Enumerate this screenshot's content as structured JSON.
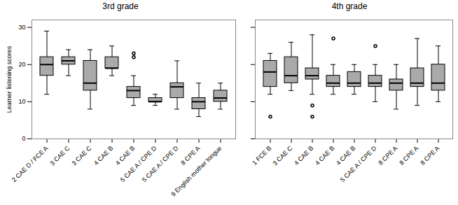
{
  "chart_data": [
    {
      "type": "box",
      "title": "3rd grade",
      "ylabel": "Learner listening scores",
      "categories": [
        "2 CAE D / FCE A",
        "3 CAE C",
        "3 CAE C",
        "4 CAE B",
        "4 CAE B",
        "5 CAE A / CPE D",
        "5 CAE A / CPE D",
        "8 CPE A",
        "9 English mother tongue"
      ],
      "boxes": [
        {
          "whisker_low": 12,
          "q1": 17,
          "median": 20,
          "q3": 22,
          "whisker_high": 29,
          "outliers": []
        },
        {
          "whisker_low": 17,
          "q1": 20,
          "median": 21,
          "q3": 22,
          "whisker_high": 24,
          "outliers": []
        },
        {
          "whisker_low": 8,
          "q1": 13,
          "median": 15,
          "q3": 21,
          "whisker_high": 24,
          "outliers": []
        },
        {
          "whisker_low": 17,
          "q1": 19,
          "median": 19,
          "q3": 22,
          "whisker_high": 25,
          "outliers": []
        },
        {
          "whisker_low": 9,
          "q1": 11,
          "median": 13,
          "q3": 14,
          "whisker_high": 17,
          "outliers": [
            23,
            22
          ]
        },
        {
          "whisker_low": 9,
          "q1": 10,
          "median": 10,
          "q3": 11,
          "whisker_high": 12,
          "outliers": []
        },
        {
          "whisker_low": 8,
          "q1": 11,
          "median": 14,
          "q3": 15,
          "whisker_high": 21,
          "outliers": []
        },
        {
          "whisker_low": 6,
          "q1": 8,
          "median": 10,
          "q3": 11,
          "whisker_high": 15,
          "outliers": []
        },
        {
          "whisker_low": 8,
          "q1": 10,
          "median": 11,
          "q3": 13,
          "whisker_high": 15,
          "outliers": []
        }
      ],
      "color": "#aaaaaa",
      "ylim": [
        0,
        32
      ],
      "yticks": [
        0,
        10,
        20,
        30
      ],
      "grid": false
    },
    {
      "type": "box",
      "title": "4th grade",
      "categories": [
        "1 FCE B",
        "3 CAE C",
        "4 CAE B",
        "4 CAE B",
        "4 CAE B",
        "5 CAE A / CPE D",
        "8 CPE A",
        "8 CPE A",
        "8 CPE A"
      ],
      "boxes": [
        {
          "whisker_low": 12,
          "q1": 14,
          "median": 18,
          "q3": 21,
          "whisker_high": 23,
          "outliers": [
            6
          ]
        },
        {
          "whisker_low": 13,
          "q1": 15,
          "median": 17,
          "q3": 22,
          "whisker_high": 26,
          "outliers": []
        },
        {
          "whisker_low": 12,
          "q1": 16,
          "median": 17,
          "q3": 19,
          "whisker_high": 28,
          "outliers": [
            9,
            6
          ]
        },
        {
          "whisker_low": 12,
          "q1": 14,
          "median": 15,
          "q3": 17,
          "whisker_high": 20,
          "outliers": [
            27
          ]
        },
        {
          "whisker_low": 12,
          "q1": 14,
          "median": 15,
          "q3": 18,
          "whisker_high": 20,
          "outliers": []
        },
        {
          "whisker_low": 10,
          "q1": 14,
          "median": 15,
          "q3": 17,
          "whisker_high": 20,
          "outliers": [
            25
          ]
        },
        {
          "whisker_low": 8,
          "q1": 13,
          "median": 15,
          "q3": 16,
          "whisker_high": 20,
          "outliers": []
        },
        {
          "whisker_low": 9,
          "q1": 14,
          "median": 15,
          "q3": 19,
          "whisker_high": 27,
          "outliers": []
        },
        {
          "whisker_low": 10,
          "q1": 13,
          "median": 15,
          "q3": 20,
          "whisker_high": 25,
          "outliers": []
        }
      ],
      "color": "#aaaaaa",
      "ylim": [
        0,
        32
      ],
      "yticks": [
        0,
        10,
        20,
        30
      ],
      "grid": false,
      "tick_labels": "x"
    }
  ]
}
